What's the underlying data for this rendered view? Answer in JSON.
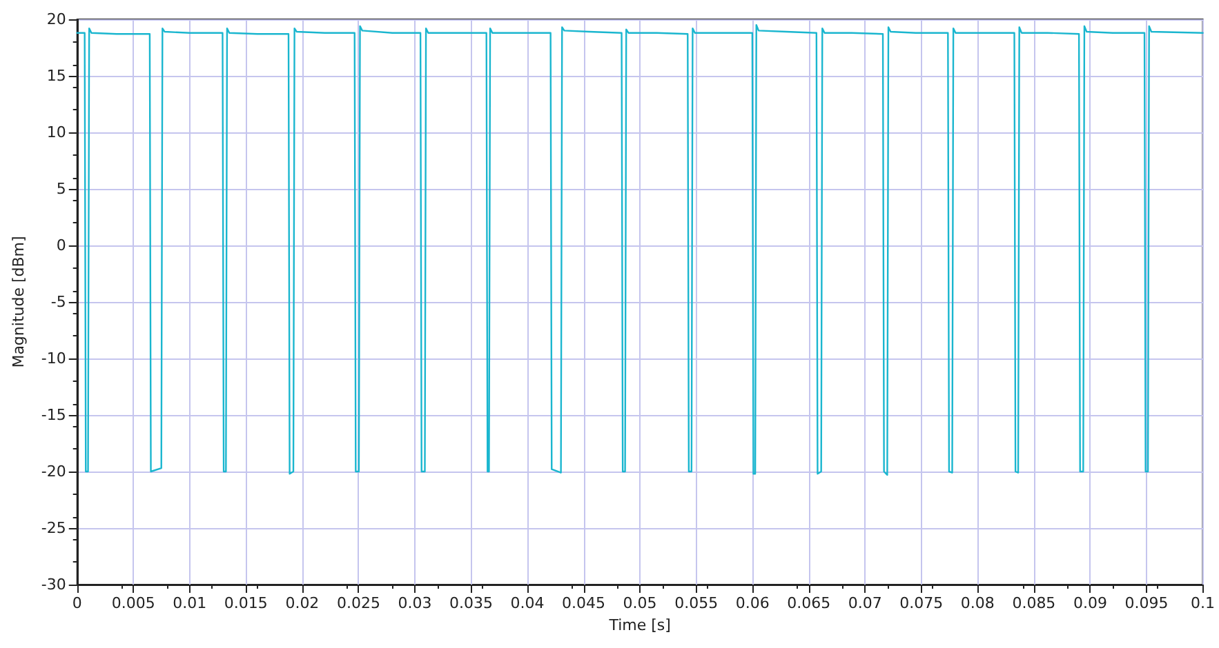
{
  "chart_data": {
    "type": "line",
    "xlabel": "Time [s]",
    "ylabel": "Magnitude [dBm]",
    "x": [
      0,
      0.00067,
      0.00077,
      0.00097,
      0.00107,
      0.00127,
      0.0035,
      0.00645,
      0.00655,
      0.00748,
      0.00758,
      0.00778,
      0.01,
      0.01292,
      0.01302,
      0.01322,
      0.01332,
      0.01352,
      0.016,
      0.01878,
      0.01888,
      0.01921,
      0.01931,
      0.01951,
      0.022,
      0.02465,
      0.02475,
      0.02503,
      0.02513,
      0.02533,
      0.028,
      0.0305,
      0.0306,
      0.03089,
      0.03099,
      0.03119,
      0.0335,
      0.03636,
      0.03646,
      0.03659,
      0.03669,
      0.03689,
      0.039,
      0.04206,
      0.04216,
      0.04298,
      0.04308,
      0.04328,
      0.0455,
      0.04837,
      0.04847,
      0.04868,
      0.04878,
      0.04898,
      0.0515,
      0.05424,
      0.05434,
      0.05458,
      0.05468,
      0.05488,
      0.057,
      0.05998,
      0.06008,
      0.06024,
      0.06034,
      0.06054,
      0.063,
      0.06568,
      0.06578,
      0.0661,
      0.0662,
      0.0664,
      0.0688,
      0.07158,
      0.07168,
      0.07197,
      0.07207,
      0.07227,
      0.0745,
      0.07736,
      0.07746,
      0.07774,
      0.07784,
      0.07804,
      0.0805,
      0.08326,
      0.08336,
      0.0836,
      0.0837,
      0.0839,
      0.0862,
      0.089,
      0.0891,
      0.08938,
      0.08948,
      0.08968,
      0.092,
      0.09482,
      0.09492,
      0.09513,
      0.09523,
      0.09543,
      0.1
    ],
    "series": [
      {
        "color": "#1ab6cf",
        "values": [
          18.8,
          18.8,
          -20,
          -20,
          19.2,
          18.8,
          18.7,
          18.7,
          -20,
          -19.7,
          19.2,
          18.9,
          18.8,
          18.8,
          -20,
          -20,
          19.2,
          18.8,
          18.7,
          18.7,
          -20.2,
          -20,
          19.2,
          18.9,
          18.8,
          18.8,
          -20,
          -20,
          19.4,
          19,
          18.8,
          18.8,
          -20,
          -20,
          19.2,
          18.8,
          18.8,
          18.8,
          -20,
          -20,
          19.2,
          18.8,
          18.8,
          18.8,
          -19.8,
          -20.1,
          19.3,
          19,
          18.9,
          18.8,
          -20,
          -20,
          19.1,
          18.8,
          18.8,
          18.7,
          -20,
          -20,
          19.2,
          18.8,
          18.8,
          18.8,
          -20.2,
          -20.2,
          19.5,
          19,
          18.9,
          18.8,
          -20.2,
          -20,
          19.2,
          18.8,
          18.8,
          18.7,
          -20,
          -20.3,
          19.3,
          18.9,
          18.8,
          18.8,
          -20,
          -20.1,
          19.2,
          18.8,
          18.8,
          18.8,
          -20,
          -20.1,
          19.3,
          18.8,
          18.8,
          18.7,
          -20,
          -20,
          19.4,
          18.9,
          18.8,
          18.8,
          -20,
          -20,
          19.4,
          18.9,
          18.8
        ]
      }
    ],
    "xlim": [
      0,
      0.1
    ],
    "xticks": [
      0,
      0.005,
      0.01,
      0.015,
      0.02,
      0.025,
      0.03,
      0.035,
      0.04,
      0.045,
      0.05,
      0.055,
      0.06,
      0.065,
      0.07,
      0.075,
      0.08,
      0.085,
      0.09,
      0.095,
      0.1
    ],
    "ylim": [
      -30,
      20
    ],
    "yticks": [
      -30,
      -25,
      -20,
      -15,
      -10,
      -5,
      0,
      5,
      10,
      15,
      20
    ],
    "grid": true,
    "marker": "none",
    "line_style": "solid"
  }
}
